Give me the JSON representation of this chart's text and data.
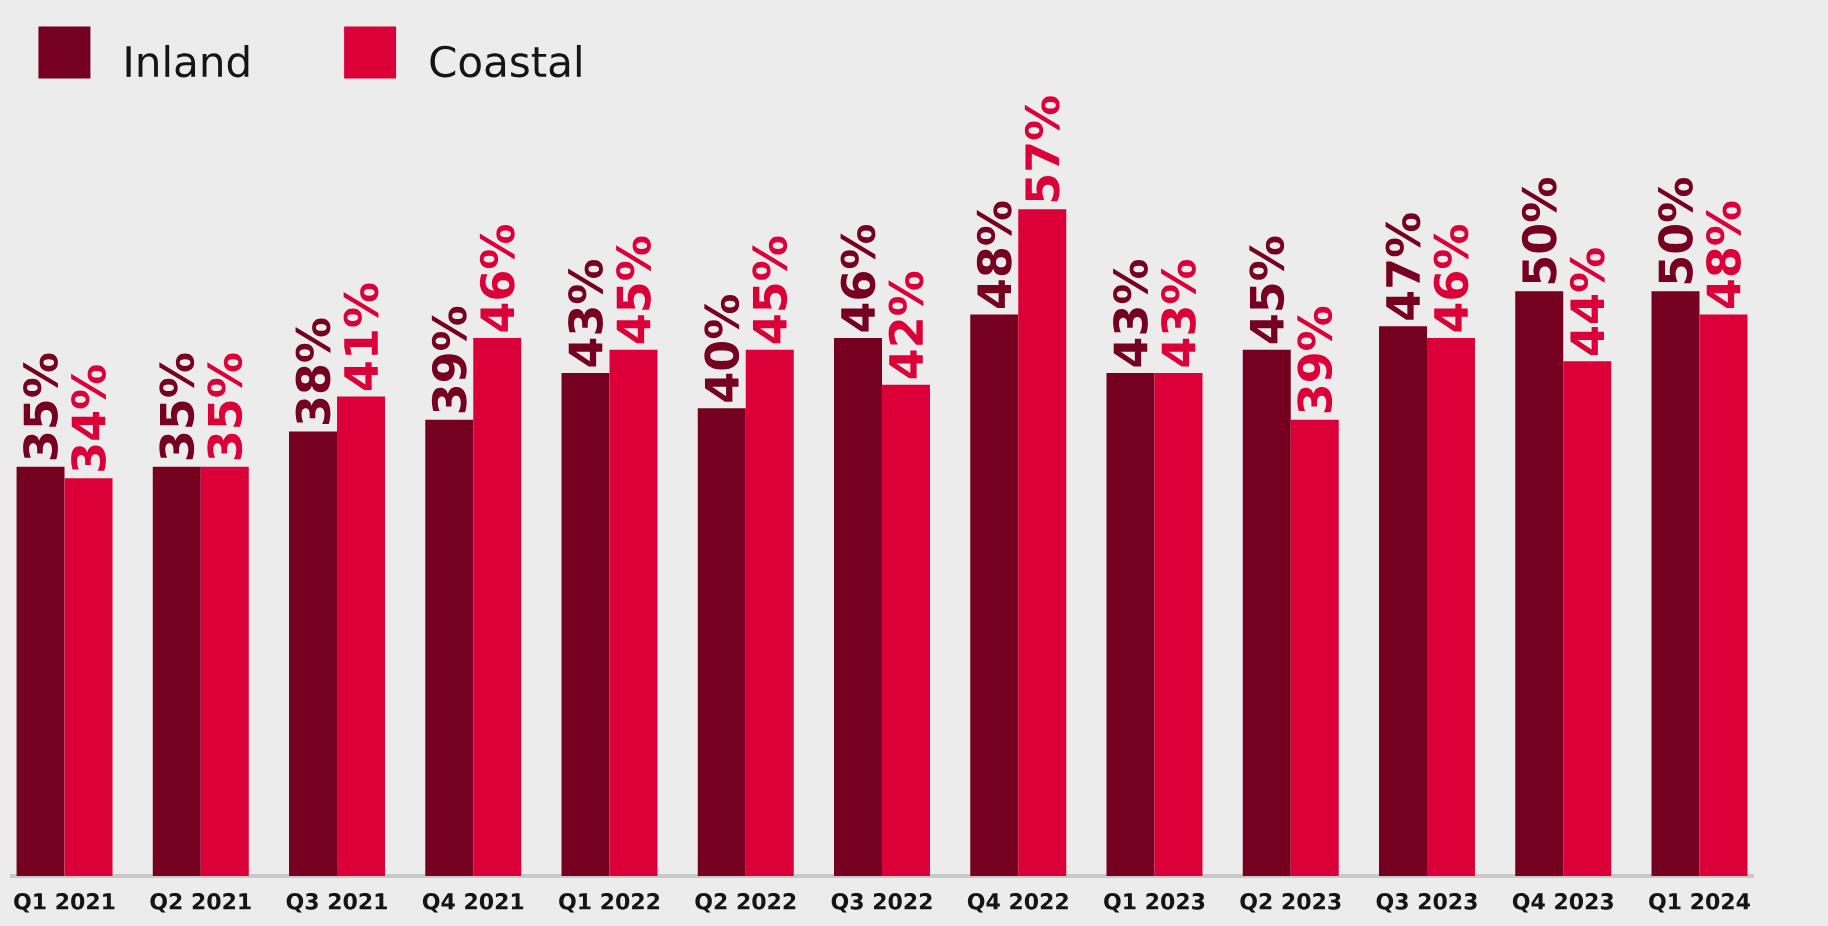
{
  "chart_data": {
    "type": "bar",
    "categories": [
      "Q1 2021",
      "Q2 2021",
      "Q3 2021",
      "Q4 2021",
      "Q1 2022",
      "Q2 2022",
      "Q3 2022",
      "Q4 2022",
      "Q1 2023",
      "Q2 2023",
      "Q3 2023",
      "Q4 2023",
      "Q1 2024"
    ],
    "series": [
      {
        "name": "Inland",
        "color": "#760020",
        "values": [
          35,
          35,
          38,
          39,
          43,
          40,
          46,
          48,
          43,
          45,
          47,
          50,
          50
        ],
        "value_labels": [
          "35%",
          "35%",
          "38%",
          "39%",
          "43%",
          "40%",
          "46%",
          "48%",
          "43%",
          "45%",
          "47%",
          "50%",
          "50%"
        ]
      },
      {
        "name": "Coastal",
        "color": "#dc0039",
        "values": [
          34,
          35,
          41,
          46,
          45,
          45,
          42,
          57,
          43,
          39,
          46,
          44,
          48
        ],
        "value_labels": [
          "34%",
          "35%",
          "41%",
          "46%",
          "45%",
          "45%",
          "42%",
          "57%",
          "43%",
          "39%",
          "46%",
          "44%",
          "48%"
        ]
      }
    ],
    "legend": "top left",
    "tick_labels": "x"
  }
}
